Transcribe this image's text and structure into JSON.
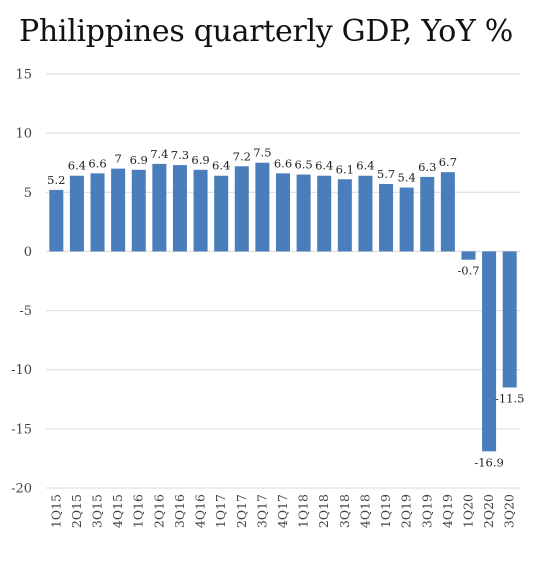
{
  "chart_data": {
    "type": "bar",
    "title": "Philippines quarterly GDP, YoY %",
    "xlabel": "",
    "ylabel": "",
    "ylim": [
      -20,
      15
    ],
    "yticks": [
      15,
      10,
      5,
      0,
      -5,
      -10,
      -15,
      -20
    ],
    "grid": true,
    "legend": "none",
    "bar_color": "#4a7ebb",
    "categories": [
      "1Q15",
      "2Q15",
      "3Q15",
      "4Q15",
      "1Q16",
      "2Q16",
      "3Q16",
      "4Q16",
      "1Q17",
      "2Q17",
      "3Q17",
      "4Q17",
      "1Q18",
      "2Q18",
      "3Q18",
      "4Q18",
      "1Q19",
      "2Q19",
      "3Q19",
      "4Q19",
      "1Q20",
      "2Q20",
      "3Q20"
    ],
    "values": [
      5.2,
      6.4,
      6.6,
      7,
      6.9,
      7.4,
      7.3,
      6.9,
      6.4,
      7.2,
      7.5,
      6.6,
      6.5,
      6.4,
      6.1,
      6.4,
      5.7,
      5.4,
      6.3,
      6.7,
      -0.7,
      -16.9,
      -11.5
    ],
    "data_labels": [
      "5.2",
      "6.4",
      "6.6",
      "7",
      "6.9",
      "7.4",
      "7.3",
      "6.9",
      "6.4",
      "7.2",
      "7.5",
      "6.6",
      "6.5",
      "6.4",
      "6.1",
      "6.4",
      "5.7",
      "5.4",
      "6.3",
      "6.7",
      "-0.7",
      "-16.9",
      "-11.5"
    ]
  }
}
